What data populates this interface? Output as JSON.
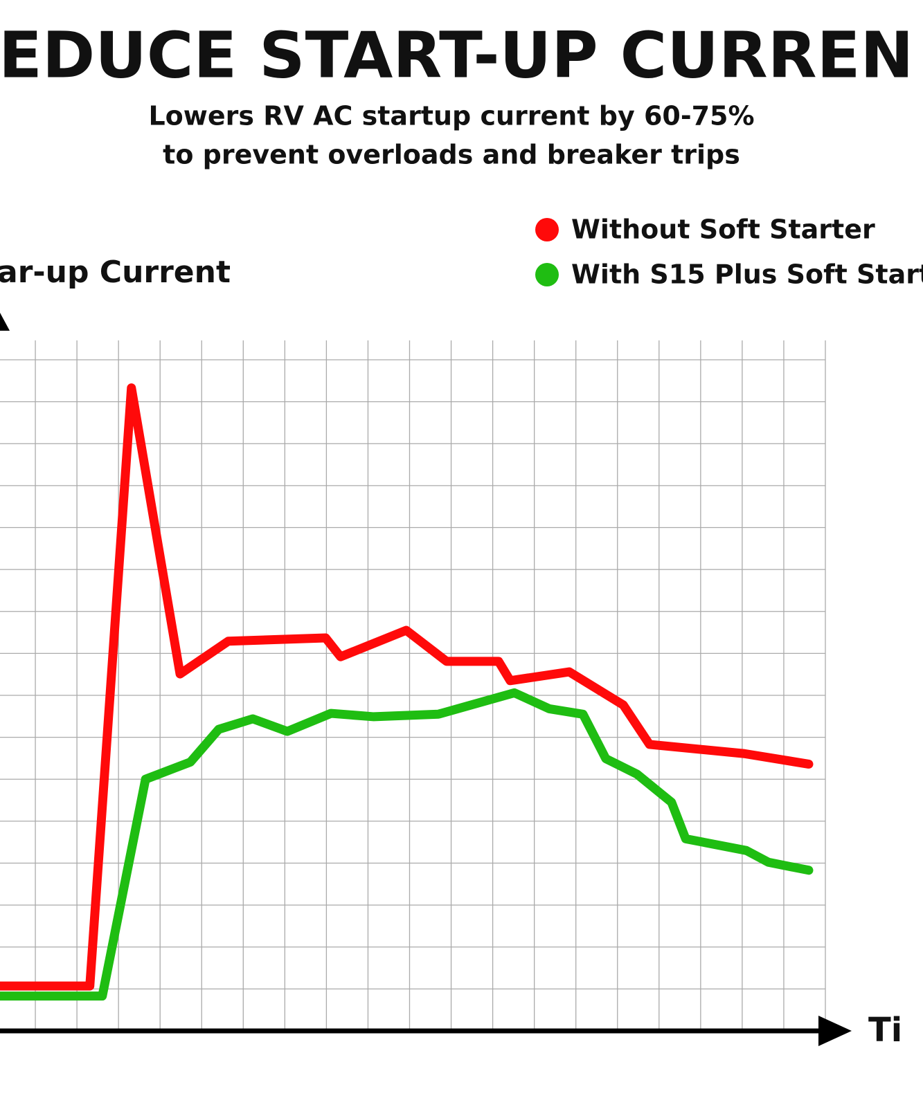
{
  "chart_data": {
    "type": "line",
    "title": "EDUCE START-UP CURREN",
    "subtitle": [
      "Lowers RV AC startup current by 60-75%",
      "to prevent overloads and breaker trips"
    ],
    "y_label": "ar-up Current",
    "x_label": "Ti",
    "xlim": [
      0,
      20
    ],
    "ylim": [
      0,
      16
    ],
    "xticks": [
      1,
      2,
      3,
      4,
      5,
      6,
      7,
      8,
      9,
      10,
      11,
      12,
      13,
      14,
      15,
      16,
      17,
      18,
      19,
      20
    ],
    "yticks": [
      1,
      2,
      3,
      4,
      5,
      6,
      7,
      8,
      9,
      10,
      11,
      12,
      13,
      14,
      15,
      16
    ],
    "grid": true,
    "legend": "top-right",
    "series": [
      {
        "name": "Without Soft Starter",
        "color": "#ff0a0a",
        "x": [
          0.15,
          2.31,
          3.31,
          4.48,
          5.64,
          7.98,
          8.34,
          9.92,
          10.89,
          12.14,
          12.42,
          13.84,
          15.14,
          15.77,
          18.05,
          19.6
        ],
        "values": [
          1.07,
          1.07,
          15.33,
          8.51,
          9.29,
          9.37,
          8.92,
          9.55,
          8.81,
          8.81,
          8.35,
          8.56,
          7.77,
          6.83,
          6.61,
          6.36
        ]
      },
      {
        "name": "With S15 Plus Soft Starte",
        "color": "#1fbd12",
        "x": [
          0.15,
          2.61,
          3.65,
          4.73,
          5.41,
          6.23,
          7.06,
          8.11,
          9.14,
          10.69,
          12.52,
          13.36,
          14.17,
          14.72,
          15.47,
          16.3,
          16.64,
          18.1,
          18.63,
          19.6
        ],
        "values": [
          0.83,
          0.83,
          6.0,
          6.41,
          7.19,
          7.44,
          7.14,
          7.57,
          7.49,
          7.55,
          8.06,
          7.68,
          7.55,
          6.49,
          6.12,
          5.45,
          4.58,
          4.3,
          4.02,
          3.83
        ]
      }
    ]
  }
}
